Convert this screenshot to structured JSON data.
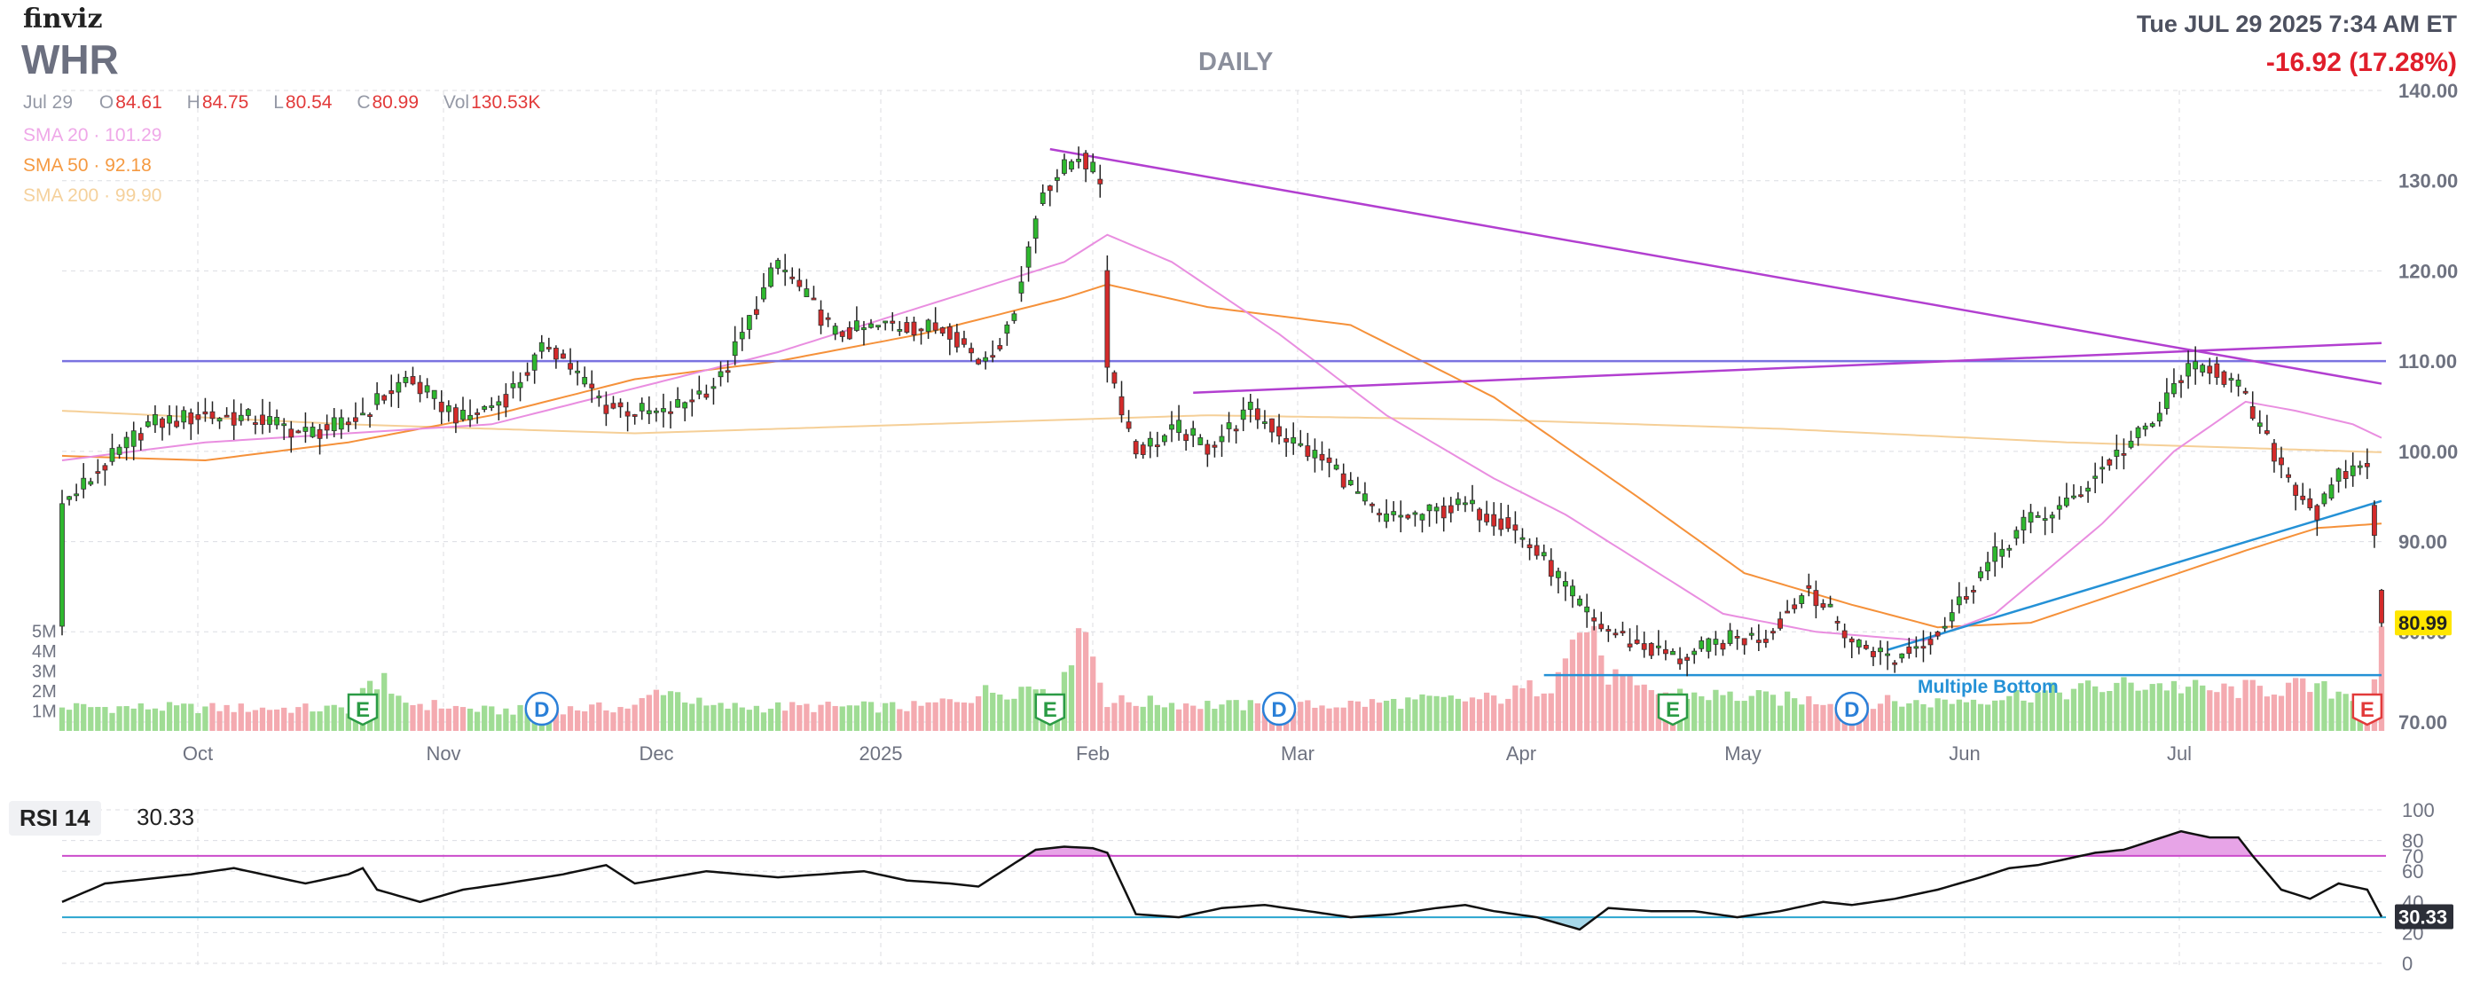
{
  "header": {
    "logo": "finviz",
    "ticker": "WHR",
    "timeframe": "DAILY",
    "datetime": "Tue JUL 29 2025 7:34 AM ET",
    "change": "-16.92 (17.28%)"
  },
  "ohlc": {
    "date": "Jul 29",
    "open": "84.61",
    "high": "84.75",
    "low": "80.54",
    "close": "80.99",
    "volume": "130.53K",
    "open_key": "O",
    "high_key": "H",
    "low_key": "L",
    "close_key": "C",
    "volume_key": "Vol"
  },
  "overlays": {
    "sma20": {
      "label": "SMA 20",
      "value": "101.29"
    },
    "sma50": {
      "label": "SMA 50",
      "value": "92.18"
    },
    "sma200": {
      "label": "SMA 200",
      "value": "99.90"
    }
  },
  "rsi": {
    "label": "RSI 14",
    "value": "30.33"
  },
  "colors": {
    "up": "#2eb82e",
    "down": "#d42a2a",
    "vol_up": "#9fdc94",
    "vol_down": "#f4aab0",
    "sma20": "#e98ee0",
    "sma50": "#f5913a",
    "sma200": "#f5cf97",
    "trend_purple": "#b23fd0",
    "trend_blue": "#2491d6",
    "resistance": "#7a72e0",
    "rsi_over": "#cc4ccc",
    "rsi_under": "#2aa5cf",
    "price_tag": "#ffe600"
  },
  "icons": {
    "earnings": "earnings-E-icon",
    "dividend": "dividend-D-icon"
  },
  "chart_data": [
    {
      "type": "candlestick",
      "title": "",
      "y_axis_ticks": [
        "70.00",
        "80.00",
        "90.00",
        "100.00",
        "110.00",
        "120.00",
        "130.00",
        "140.00"
      ],
      "ylim": [
        70,
        140
      ],
      "volume_ticks": [
        "1M",
        "2M",
        "3M",
        "4M",
        "5M"
      ],
      "x_tick_labels": [
        "Oct",
        "Nov",
        "Dec",
        "2025",
        "Feb",
        "Mar",
        "Apr",
        "May",
        "Jun",
        "Jul"
      ],
      "last_price_tag": "80.99",
      "price_path": [
        [
          0,
          94
        ],
        [
          6,
          98.5
        ],
        [
          12,
          103
        ],
        [
          20,
          104
        ],
        [
          28,
          103.5
        ],
        [
          34,
          102
        ],
        [
          40,
          103
        ],
        [
          48,
          108
        ],
        [
          56,
          103.5
        ],
        [
          62,
          106
        ],
        [
          68,
          112
        ],
        [
          76,
          105
        ],
        [
          84,
          104
        ],
        [
          92,
          108
        ],
        [
          100,
          121
        ],
        [
          108,
          113
        ],
        [
          116,
          114
        ],
        [
          124,
          113.5
        ],
        [
          128,
          110
        ],
        [
          132,
          113
        ],
        [
          137,
          129
        ],
        [
          142,
          133
        ],
        [
          145,
          130
        ],
        [
          146,
          110
        ],
        [
          150,
          100
        ],
        [
          156,
          102.5
        ],
        [
          160,
          100.5
        ],
        [
          166,
          104.5
        ],
        [
          172,
          101
        ],
        [
          178,
          98
        ],
        [
          184,
          92.5
        ],
        [
          190,
          93
        ],
        [
          196,
          94
        ],
        [
          202,
          92
        ],
        [
          208,
          87
        ],
        [
          214,
          81
        ],
        [
          220,
          78.5
        ],
        [
          226,
          77
        ],
        [
          232,
          79
        ],
        [
          238,
          79.5
        ],
        [
          244,
          85
        ],
        [
          250,
          79
        ],
        [
          256,
          77
        ],
        [
          262,
          80
        ],
        [
          268,
          86.5
        ],
        [
          274,
          92
        ],
        [
          280,
          94
        ],
        [
          286,
          99
        ],
        [
          292,
          103
        ],
        [
          296,
          108.5
        ],
        [
          300,
          109.5
        ],
        [
          304,
          107
        ],
        [
          308,
          101
        ],
        [
          312,
          96
        ],
        [
          315,
          93
        ],
        [
          318,
          97
        ],
        [
          322,
          99
        ],
        [
          324,
          81
        ]
      ],
      "sma20_path": [
        [
          0,
          99
        ],
        [
          20,
          101
        ],
        [
          40,
          102
        ],
        [
          60,
          103
        ],
        [
          80,
          107
        ],
        [
          100,
          111
        ],
        [
          120,
          116
        ],
        [
          140,
          121
        ],
        [
          146,
          124
        ],
        [
          155,
          121
        ],
        [
          170,
          113
        ],
        [
          185,
          104
        ],
        [
          200,
          97
        ],
        [
          210,
          93
        ],
        [
          220,
          88
        ],
        [
          232,
          82
        ],
        [
          245,
          80
        ],
        [
          260,
          79
        ],
        [
          270,
          82
        ],
        [
          285,
          92
        ],
        [
          295,
          100
        ],
        [
          305,
          105.5
        ],
        [
          312,
          104.5
        ],
        [
          320,
          103
        ],
        [
          324,
          101.5
        ]
      ],
      "sma50_path": [
        [
          0,
          99.5
        ],
        [
          20,
          99
        ],
        [
          40,
          101
        ],
        [
          60,
          104
        ],
        [
          80,
          108
        ],
        [
          100,
          110
        ],
        [
          120,
          113
        ],
        [
          140,
          117
        ],
        [
          146,
          118.5
        ],
        [
          160,
          116
        ],
        [
          180,
          114
        ],
        [
          200,
          106
        ],
        [
          220,
          95
        ],
        [
          235,
          86.5
        ],
        [
          250,
          83
        ],
        [
          262,
          80.5
        ],
        [
          275,
          81
        ],
        [
          290,
          85
        ],
        [
          305,
          89
        ],
        [
          315,
          91.5
        ],
        [
          324,
          92
        ]
      ],
      "sma200_path": [
        [
          0,
          104.5
        ],
        [
          40,
          103
        ],
        [
          80,
          102
        ],
        [
          120,
          103
        ],
        [
          160,
          104
        ],
        [
          200,
          103.5
        ],
        [
          240,
          102.5
        ],
        [
          280,
          101
        ],
        [
          320,
          100
        ],
        [
          324,
          99.9
        ]
      ],
      "volume_path": [
        [
          0,
          1.2
        ],
        [
          40,
          1.1
        ],
        [
          45,
          3.0
        ],
        [
          46,
          1.5
        ],
        [
          60,
          1.0
        ],
        [
          80,
          1.2
        ],
        [
          84,
          2.2
        ],
        [
          90,
          1.2
        ],
        [
          120,
          1.2
        ],
        [
          130,
          2.0
        ],
        [
          140,
          2.4
        ],
        [
          142,
          6.0
        ],
        [
          146,
          1.5
        ],
        [
          170,
          1.2
        ],
        [
          190,
          1.5
        ],
        [
          200,
          1.6
        ],
        [
          208,
          2.4
        ],
        [
          209,
          3.8
        ],
        [
          214,
          5.5
        ],
        [
          215,
          3.1
        ],
        [
          220,
          2.0
        ],
        [
          240,
          1.6
        ],
        [
          260,
          1.4
        ],
        [
          280,
          2.0
        ],
        [
          292,
          2.4
        ],
        [
          300,
          2.0
        ],
        [
          312,
          2.2
        ],
        [
          322,
          1.8
        ],
        [
          323,
          3.0
        ],
        [
          324,
          4.3
        ]
      ],
      "events": [
        {
          "type": "E",
          "index": 42
        },
        {
          "type": "D",
          "index": 67
        },
        {
          "type": "E",
          "index": 138
        },
        {
          "type": "D",
          "index": 170
        },
        {
          "type": "E",
          "index": 225
        },
        {
          "type": "D",
          "index": 250
        },
        {
          "type": "E",
          "index": 322
        }
      ],
      "horizontal_line": {
        "value": 110.0
      },
      "trendlines": [
        {
          "from": [
            138,
            133.5
          ],
          "to": [
            324,
            107.5
          ]
        },
        {
          "from": [
            158,
            106.5
          ],
          "to": [
            324,
            112
          ]
        },
        {
          "from": [
            255,
            78
          ],
          "to": [
            324,
            94.5
          ]
        }
      ],
      "support_line": {
        "value": 75.2,
        "from": 207,
        "to": 324,
        "label": "Multiple Bottom"
      }
    },
    {
      "type": "line",
      "title": "RSI 14",
      "y_ticks": [
        "0",
        "20",
        "30",
        "40",
        "60",
        "70",
        "80",
        "100"
      ],
      "ylim": [
        0,
        100
      ],
      "overbought": 70,
      "oversold": 30,
      "rsi_path": [
        [
          0,
          40
        ],
        [
          6,
          52
        ],
        [
          12,
          55
        ],
        [
          18,
          58
        ],
        [
          24,
          62
        ],
        [
          28,
          58
        ],
        [
          34,
          52
        ],
        [
          40,
          58
        ],
        [
          42,
          62
        ],
        [
          44,
          48
        ],
        [
          50,
          40
        ],
        [
          56,
          48
        ],
        [
          62,
          52
        ],
        [
          70,
          58
        ],
        [
          76,
          64
        ],
        [
          80,
          52
        ],
        [
          90,
          60
        ],
        [
          100,
          56
        ],
        [
          106,
          58
        ],
        [
          112,
          60
        ],
        [
          118,
          54
        ],
        [
          124,
          52
        ],
        [
          128,
          50
        ],
        [
          132,
          62
        ],
        [
          136,
          74
        ],
        [
          140,
          76
        ],
        [
          144,
          75
        ],
        [
          146,
          72
        ],
        [
          150,
          32
        ],
        [
          156,
          30
        ],
        [
          162,
          36
        ],
        [
          168,
          38
        ],
        [
          174,
          34
        ],
        [
          180,
          30
        ],
        [
          186,
          32
        ],
        [
          192,
          36
        ],
        [
          196,
          38
        ],
        [
          200,
          34
        ],
        [
          206,
          30
        ],
        [
          212,
          22
        ],
        [
          216,
          36
        ],
        [
          222,
          34
        ],
        [
          228,
          34
        ],
        [
          234,
          30
        ],
        [
          240,
          34
        ],
        [
          246,
          40
        ],
        [
          250,
          38
        ],
        [
          256,
          42
        ],
        [
          262,
          48
        ],
        [
          268,
          56
        ],
        [
          272,
          62
        ],
        [
          276,
          64
        ],
        [
          280,
          68
        ],
        [
          284,
          72
        ],
        [
          288,
          74
        ],
        [
          292,
          80
        ],
        [
          296,
          86
        ],
        [
          300,
          82
        ],
        [
          304,
          82
        ],
        [
          306,
          70
        ],
        [
          310,
          48
        ],
        [
          314,
          42
        ],
        [
          318,
          52
        ],
        [
          322,
          48
        ],
        [
          324,
          30.33
        ]
      ]
    }
  ]
}
